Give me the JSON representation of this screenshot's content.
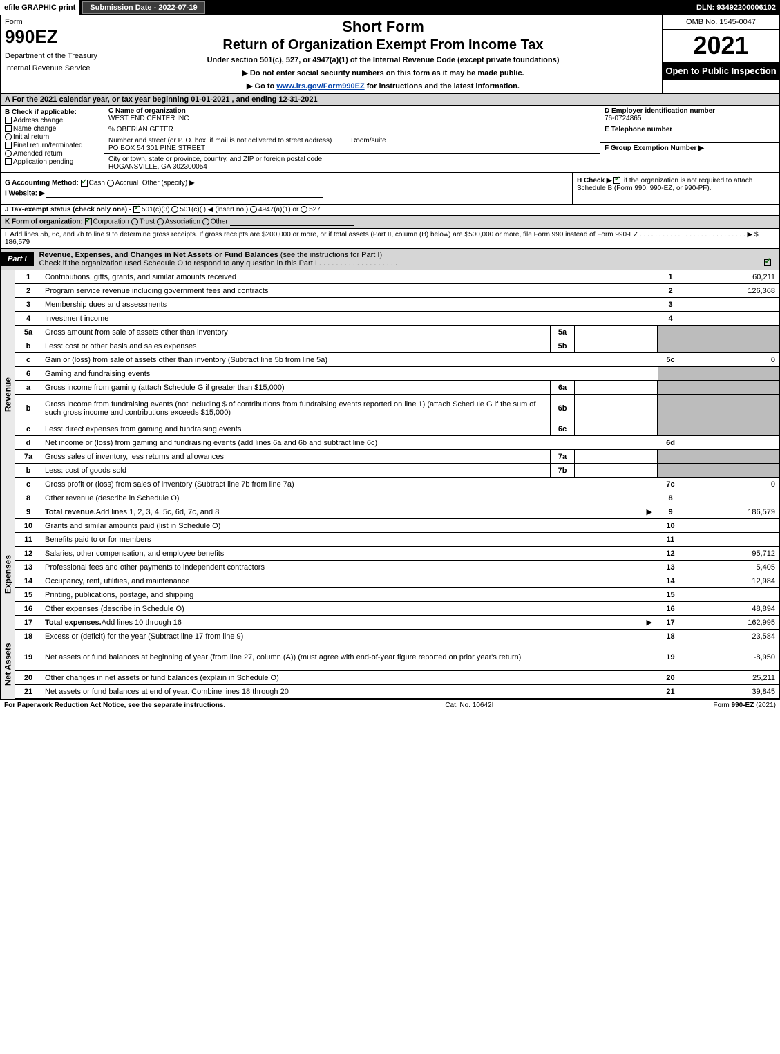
{
  "topbar": {
    "efile": "efile GRAPHIC print",
    "sub_date": "Submission Date - 2022-07-19",
    "dln": "DLN: 93492200006102"
  },
  "header": {
    "form_word": "Form",
    "form_num": "990EZ",
    "dept1": "Department of the Treasury",
    "dept2": "Internal Revenue Service",
    "short": "Short Form",
    "title": "Return of Organization Exempt From Income Tax",
    "sub": "Under section 501(c), 527, or 4947(a)(1) of the Internal Revenue Code (except private foundations)",
    "note1": "▶ Do not enter social security numbers on this form as it may be made public.",
    "note2_pre": "▶ Go to ",
    "note2_link": "www.irs.gov/Form990EZ",
    "note2_post": " for instructions and the latest information.",
    "omb": "OMB No. 1545-0047",
    "year": "2021",
    "open": "Open to Public Inspection"
  },
  "rowA": "A  For the 2021 calendar year, or tax year beginning 01-01-2021 , and ending 12-31-2021",
  "colB": {
    "label": "B  Check if applicable:",
    "c1": "Address change",
    "c2": "Name change",
    "c3": "Initial return",
    "c4": "Final return/terminated",
    "c5": "Amended return",
    "c6": "Application pending"
  },
  "colC": {
    "c_label": "C Name of organization",
    "c_name": "WEST END CENTER INC",
    "care_of": "% OBERIAN GETER",
    "addr_label": "Number and street (or P. O. box, if mail is not delivered to street address)",
    "room_label": "Room/suite",
    "addr": "PO BOX 54 301 PINE STREET",
    "city_label": "City or town, state or province, country, and ZIP or foreign postal code",
    "city": "HOGANSVILLE, GA  302300054"
  },
  "colDEF": {
    "d_label": "D Employer identification number",
    "ein": "76-0724865",
    "e_label": "E Telephone number",
    "f_label": "F Group Exemption Number  ▶"
  },
  "rowGHI": {
    "g_label": "G Accounting Method:",
    "g_cash": "Cash",
    "g_accrual": "Accrual",
    "g_other": "Other (specify) ▶",
    "i_label": "I Website: ▶",
    "h_label": "H  Check ▶",
    "h_text": "if the organization is not required to attach Schedule B (Form 990, 990-EZ, or 990-PF)."
  },
  "rowJ": {
    "label": "J Tax-exempt status (check only one) -",
    "o1": "501(c)(3)",
    "o2": "501(c)(    ) ◀ (insert no.)",
    "o3": "4947(a)(1) or",
    "o4": "527"
  },
  "rowK": {
    "label": "K Form of organization:",
    "o1": "Corporation",
    "o2": "Trust",
    "o3": "Association",
    "o4": "Other"
  },
  "rowL": {
    "text": "L Add lines 5b, 6c, and 7b to line 9 to determine gross receipts. If gross receipts are $200,000 or more, or if total assets (Part II, column (B) below) are $500,000 or more, file Form 990 instead of Form 990-EZ  .  .  .  .  .  .  .  .  .  .  .  .  .  .  .  .  .  .  .  .  .  .  .  .  .  .  .  .  ▶ $",
    "amount": "186,579"
  },
  "partI": {
    "tab": "Part I",
    "title": "Revenue, Expenses, and Changes in Net Assets or Fund Balances",
    "title_paren": "(see the instructions for Part I)",
    "check_line": "Check if the organization used Schedule O to respond to any question in this Part I  .  .  .  .  .  .  .  .  .  .  .  .  .  .  .  .  .  .  ."
  },
  "vlabels": {
    "rev": "Revenue",
    "exp": "Expenses",
    "net": "Net Assets"
  },
  "revenue_lines": [
    {
      "n": "1",
      "d": "Contributions, gifts, grants, and similar amounts received",
      "ref": "1",
      "amt": "60,211"
    },
    {
      "n": "2",
      "d": "Program service revenue including government fees and contracts",
      "ref": "2",
      "amt": "126,368"
    },
    {
      "n": "3",
      "d": "Membership dues and assessments",
      "ref": "3",
      "amt": ""
    },
    {
      "n": "4",
      "d": "Investment income",
      "ref": "4",
      "amt": ""
    },
    {
      "n": "5a",
      "d": "Gross amount from sale of assets other than inventory",
      "sub": "5a",
      "subval": "",
      "shaded": true
    },
    {
      "n": "b",
      "d": "Less: cost or other basis and sales expenses",
      "sub": "5b",
      "subval": "",
      "shaded": true
    },
    {
      "n": "c",
      "d": "Gain or (loss) from sale of assets other than inventory (Subtract line 5b from line 5a)",
      "ref": "5c",
      "amt": "0"
    },
    {
      "n": "6",
      "d": "Gaming and fundraising events",
      "shaded": true,
      "noamt": true
    },
    {
      "n": "a",
      "d": "Gross income from gaming (attach Schedule G if greater than $15,000)",
      "sub": "6a",
      "subval": "",
      "shaded": true
    },
    {
      "n": "b",
      "d": "Gross income from fundraising events (not including $               of contributions from fundraising events reported on line 1) (attach Schedule G if the sum of such gross income and contributions exceeds $15,000)",
      "sub": "6b",
      "subval": "",
      "shaded": true,
      "tall": true
    },
    {
      "n": "c",
      "d": "Less: direct expenses from gaming and fundraising events",
      "sub": "6c",
      "subval": "",
      "shaded": true
    },
    {
      "n": "d",
      "d": "Net income or (loss) from gaming and fundraising events (add lines 6a and 6b and subtract line 6c)",
      "ref": "6d",
      "amt": ""
    },
    {
      "n": "7a",
      "d": "Gross sales of inventory, less returns and allowances",
      "sub": "7a",
      "subval": "",
      "shaded": true
    },
    {
      "n": "b",
      "d": "Less: cost of goods sold",
      "sub": "7b",
      "subval": "",
      "shaded": true
    },
    {
      "n": "c",
      "d": "Gross profit or (loss) from sales of inventory (Subtract line 7b from line 7a)",
      "ref": "7c",
      "amt": "0"
    },
    {
      "n": "8",
      "d": "Other revenue (describe in Schedule O)",
      "ref": "8",
      "amt": ""
    },
    {
      "n": "9",
      "d": "Total revenue. Add lines 1, 2, 3, 4, 5c, 6d, 7c, and 8",
      "ref": "9",
      "amt": "186,579",
      "bold": true,
      "arrow": true
    }
  ],
  "expense_lines": [
    {
      "n": "10",
      "d": "Grants and similar amounts paid (list in Schedule O)",
      "ref": "10",
      "amt": ""
    },
    {
      "n": "11",
      "d": "Benefits paid to or for members",
      "ref": "11",
      "amt": ""
    },
    {
      "n": "12",
      "d": "Salaries, other compensation, and employee benefits",
      "ref": "12",
      "amt": "95,712"
    },
    {
      "n": "13",
      "d": "Professional fees and other payments to independent contractors",
      "ref": "13",
      "amt": "5,405"
    },
    {
      "n": "14",
      "d": "Occupancy, rent, utilities, and maintenance",
      "ref": "14",
      "amt": "12,984"
    },
    {
      "n": "15",
      "d": "Printing, publications, postage, and shipping",
      "ref": "15",
      "amt": ""
    },
    {
      "n": "16",
      "d": "Other expenses (describe in Schedule O)",
      "ref": "16",
      "amt": "48,894"
    },
    {
      "n": "17",
      "d": "Total expenses. Add lines 10 through 16",
      "ref": "17",
      "amt": "162,995",
      "bold": true,
      "arrow": true
    }
  ],
  "net_lines": [
    {
      "n": "18",
      "d": "Excess or (deficit) for the year (Subtract line 17 from line 9)",
      "ref": "18",
      "amt": "23,584"
    },
    {
      "n": "19",
      "d": "Net assets or fund balances at beginning of year (from line 27, column (A)) (must agree with end-of-year figure reported on prior year's return)",
      "ref": "19",
      "amt": "-8,950",
      "tall": true
    },
    {
      "n": "20",
      "d": "Other changes in net assets or fund balances (explain in Schedule O)",
      "ref": "20",
      "amt": "25,211"
    },
    {
      "n": "21",
      "d": "Net assets or fund balances at end of year. Combine lines 18 through 20",
      "ref": "21",
      "amt": "39,845"
    }
  ],
  "footer": {
    "l": "For Paperwork Reduction Act Notice, see the separate instructions.",
    "c": "Cat. No. 10642I",
    "r_pre": "Form ",
    "r_bold": "990-EZ",
    "r_post": " (2021)"
  }
}
